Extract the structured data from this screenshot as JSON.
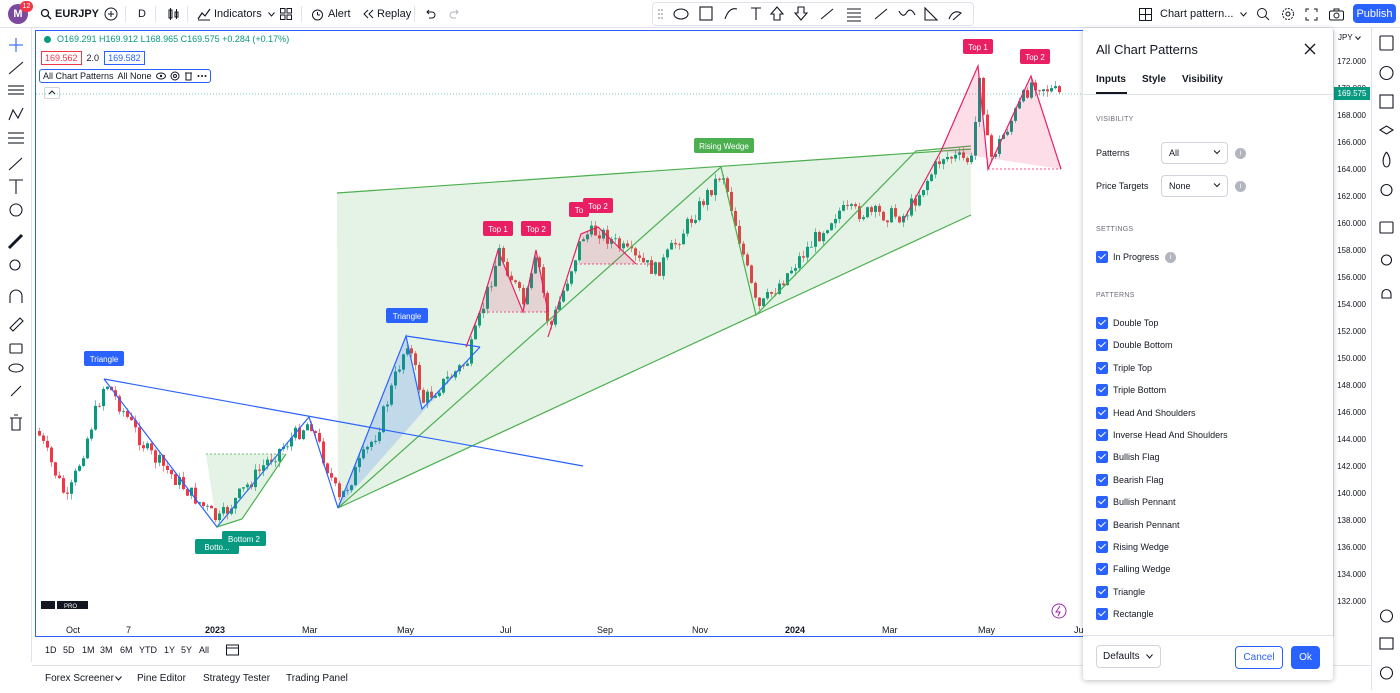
{
  "header": {
    "avatar_letter": "M",
    "notifications": "12",
    "symbol": "EURJPY",
    "interval": "D",
    "indicators_label": "Indicators",
    "alert_label": "Alert",
    "replay_label": "Replay",
    "layout_name": "Chart pattern...",
    "publish_label": "Publish"
  },
  "legend": {
    "ohlc": [
      "O169.291",
      "H169.912",
      "L168.965",
      "C169.575",
      "+0.284 (+0.17%)"
    ],
    "bid": "169.562",
    "spread": "2.0",
    "ask": "169.582",
    "indicator_name": "All Chart Patterns",
    "indicator_args": "All None"
  },
  "price_axis": {
    "currency": "JPY",
    "current_price": "169.575",
    "labels": [
      "172.000",
      "170.000",
      "168.000",
      "166.000",
      "164.000",
      "162.000",
      "160.000",
      "158.000",
      "156.000",
      "154.000",
      "152.000",
      "150.000",
      "148.000",
      "146.000",
      "144.000",
      "142.000",
      "140.000",
      "138.000",
      "136.000",
      "134.000",
      "132.000"
    ]
  },
  "time_axis": [
    "Oct",
    "7",
    "2023",
    "Mar",
    "May",
    "Jul",
    "Sep",
    "Nov",
    "2024",
    "Mar",
    "May",
    "Jul"
  ],
  "chart_labels": {
    "triangle1": "Triangle",
    "triangle2": "Triangle",
    "bottom1": "Botto...",
    "bottom2": "Bottom 2",
    "top1a": "Top 1",
    "top2a": "Top 2",
    "top1b": "To",
    "top2b": "Top 2",
    "rising_wedge": "Rising Wedge",
    "top1c": "Top 1",
    "top2c": "Top 2",
    "logo": "TV PRO"
  },
  "timeframes": [
    "1D",
    "5D",
    "1M",
    "3M",
    "6M",
    "YTD",
    "1Y",
    "5Y",
    "All"
  ],
  "footer_tabs": [
    "Forex Screener",
    "Pine Editor",
    "Strategy Tester",
    "Trading Panel"
  ],
  "dialog": {
    "title": "All Chart Patterns",
    "tabs": [
      "Inputs",
      "Style",
      "Visibility"
    ],
    "section_visibility": "VISIBILITY",
    "patterns_label": "Patterns",
    "patterns_value": "All",
    "targets_label": "Price Targets",
    "targets_value": "None",
    "section_settings": "SETTINGS",
    "in_progress": "In Progress",
    "section_patterns": "PATTERNS",
    "pattern_items": [
      "Double Top",
      "Double Bottom",
      "Triple Top",
      "Triple Bottom",
      "Head And Shoulders",
      "Inverse Head And Shoulders",
      "Bullish Flag",
      "Bearish Flag",
      "Bullish Pennant",
      "Bearish Pennant",
      "Rising Wedge",
      "Falling Wedge",
      "Triangle",
      "Rectangle"
    ],
    "defaults_label": "Defaults",
    "cancel_label": "Cancel",
    "ok_label": "Ok"
  },
  "colors": {
    "accent": "#2962ff",
    "bull": "#089981",
    "bear": "#f23645",
    "pattern_green": "#4caf50",
    "pattern_red": "#e91e63"
  }
}
